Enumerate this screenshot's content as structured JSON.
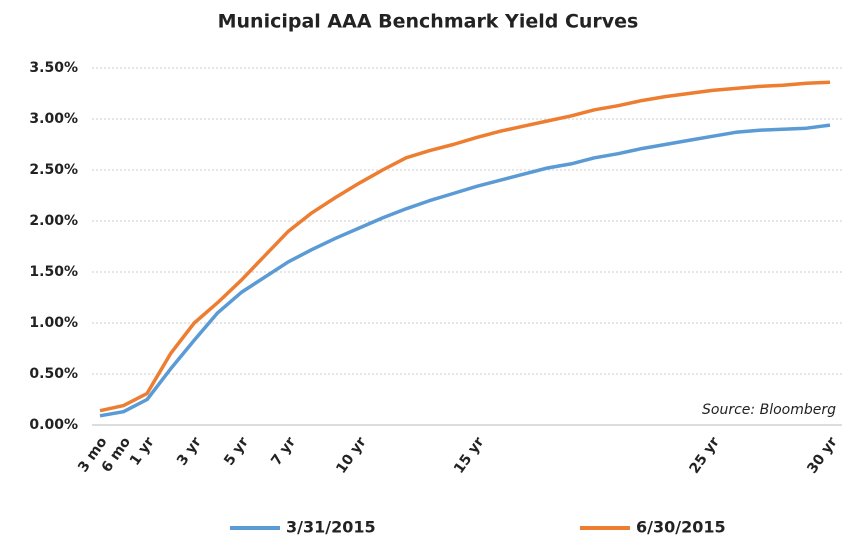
{
  "chart_data": {
    "type": "line",
    "title": "Municipal AAA  Benchmark Yield Curves",
    "annotation": "Source: Bloomberg",
    "categories": [
      "3 mo",
      "6 mo",
      "1 yr",
      null,
      "3 yr",
      null,
      "5 yr",
      null,
      "7 yr",
      null,
      null,
      "10 yr",
      null,
      null,
      null,
      null,
      "15 yr",
      null,
      null,
      null,
      null,
      null,
      null,
      null,
      null,
      null,
      "25 yr",
      null,
      null,
      null,
      null,
      "30 yr"
    ],
    "series": [
      {
        "name": "3/31/2015",
        "color": "#5b9bd5",
        "values": [
          0.09,
          0.13,
          0.25,
          0.55,
          0.83,
          1.1,
          1.3,
          1.45,
          1.6,
          1.72,
          1.83,
          1.93,
          2.03,
          2.12,
          2.2,
          2.27,
          2.34,
          2.4,
          2.46,
          2.52,
          2.56,
          2.62,
          2.66,
          2.71,
          2.75,
          2.79,
          2.83,
          2.87,
          2.89,
          2.9,
          2.91,
          2.94
        ]
      },
      {
        "name": "6/30/2015",
        "color": "#ed7d31",
        "values": [
          0.14,
          0.19,
          0.31,
          0.7,
          1.0,
          1.2,
          1.42,
          1.66,
          1.9,
          2.08,
          2.23,
          2.37,
          2.5,
          2.62,
          2.69,
          2.75,
          2.82,
          2.88,
          2.93,
          2.98,
          3.03,
          3.09,
          3.13,
          3.18,
          3.22,
          3.25,
          3.28,
          3.3,
          3.32,
          3.33,
          3.35,
          3.36
        ]
      }
    ],
    "ylim": [
      0,
      3.5
    ],
    "yticks": [
      {
        "value": 0,
        "label": "0.00%"
      },
      {
        "value": 0.5,
        "label": "0.50%"
      },
      {
        "value": 1,
        "label": "1.00%"
      },
      {
        "value": 1.5,
        "label": "1.50%"
      },
      {
        "value": 2,
        "label": "2.00%"
      },
      {
        "value": 2.5,
        "label": "2.50%"
      },
      {
        "value": 3,
        "label": "3.00%"
      },
      {
        "value": 3.5,
        "label": "3.50%"
      }
    ],
    "grid": true,
    "legend": "bottom"
  }
}
